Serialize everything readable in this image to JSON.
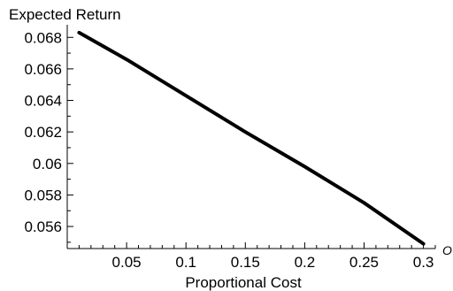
{
  "chart_data": {
    "type": "line",
    "ylabel": "Expected Return",
    "xlabel": "Proportional Cost",
    "corner_label": "O",
    "xlim": [
      0.0,
      0.31
    ],
    "ylim": [
      0.0546,
      0.0688
    ],
    "x_ticks": [
      0.05,
      0.1,
      0.15,
      0.2,
      0.25,
      0.3
    ],
    "x_tick_labels": [
      "0.05",
      "0.1",
      "0.15",
      "0.2",
      "0.25",
      "0.3"
    ],
    "y_ticks": [
      0.056,
      0.058,
      0.06,
      0.062,
      0.064,
      0.066,
      0.068
    ],
    "y_tick_labels": [
      "0.056",
      "0.058",
      "0.06",
      "0.062",
      "0.064",
      "0.066",
      "0.068"
    ],
    "grid": false,
    "legend": "none",
    "line_color": "#000000",
    "series": [
      {
        "x": [
          0.01,
          0.05,
          0.1,
          0.15,
          0.2,
          0.25,
          0.3
        ],
        "values": [
          0.0683,
          0.0666,
          0.0643,
          0.062,
          0.0598,
          0.0575,
          0.0549
        ]
      }
    ]
  }
}
